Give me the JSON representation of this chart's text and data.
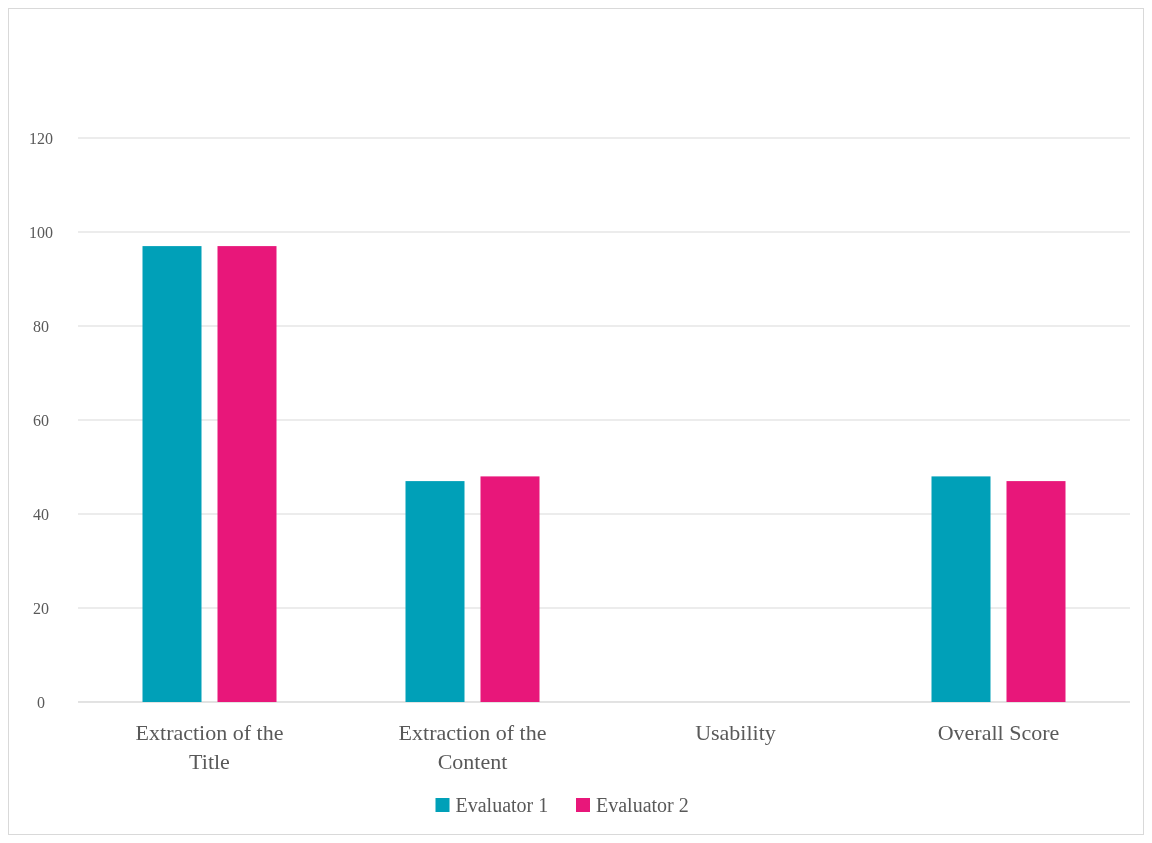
{
  "chart_data": {
    "type": "bar",
    "categories": [
      "Extraction of the Title",
      "Extraction of the Content",
      "Usability",
      "Overall Score"
    ],
    "series": [
      {
        "name": "Evaluator 1",
        "color": "#00a0b8",
        "values": [
          97,
          47,
          0,
          48
        ]
      },
      {
        "name": "Evaluator 2",
        "color": "#e8177a",
        "values": [
          97,
          48,
          0,
          47
        ]
      }
    ],
    "ylim": [
      0,
      120
    ],
    "yticks": [
      0,
      20,
      40,
      60,
      80,
      100,
      120
    ],
    "grid": "y",
    "legend": "bottom"
  }
}
